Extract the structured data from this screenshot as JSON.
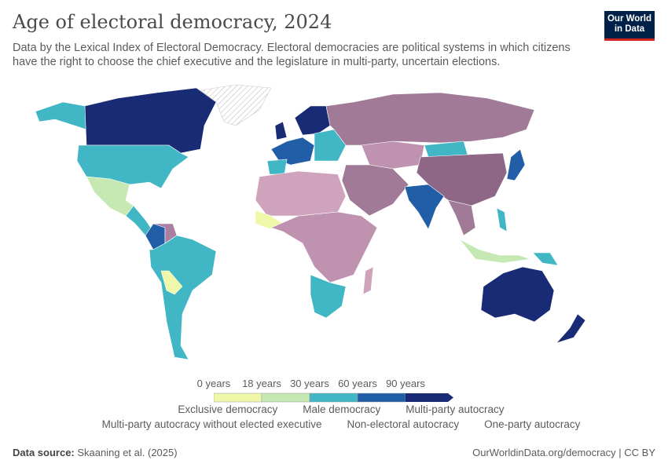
{
  "header": {
    "title": "Age of electoral democracy, 2024",
    "subtitle": "Data by the Lexical Index of Electoral Democracy. Electoral democracies are political systems in which citizens have the right to choose the chief executive and the legislature in multi-party, uncertain elections.",
    "logo_text": "Our World in Data"
  },
  "legend": {
    "scale": {
      "ticks": [
        "0 years",
        "18 years",
        "30 years",
        "60 years",
        "90 years"
      ],
      "colors": [
        "#eff7a9",
        "#c6e9b4",
        "#41b6c4",
        "#225ea8",
        "#182b74"
      ]
    },
    "categories": [
      {
        "label": "Exclusive democracy",
        "color": "#d8b3c8"
      },
      {
        "label": "Male democracy",
        "color": "#cfa3bb"
      },
      {
        "label": "Multi-party autocracy",
        "color": "#bf92b0"
      },
      {
        "label": "Multi-party autocracy without elected executive",
        "color": "#a97fa2"
      },
      {
        "label": "Non-electoral autocracy",
        "color": "#8e6786"
      },
      {
        "label": "One-party autocracy",
        "color": "#a07a96"
      }
    ]
  },
  "footer": {
    "source_label": "Data source:",
    "source": "Skaaning et al. (2025)",
    "url": "OurWorldinData.org/democracy | CC BY"
  }
}
